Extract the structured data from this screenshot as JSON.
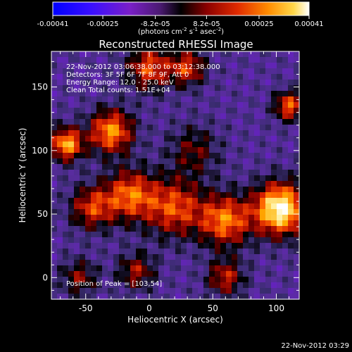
{
  "colorbar": {
    "ticks": [
      "-0.00041",
      "-0.00025",
      "-8.2e-05",
      "8.2e-05",
      "0.00025",
      "0.00041"
    ],
    "range": [
      -0.00041,
      0.00041
    ],
    "units_prefix": "(photons cm",
    "units_exp1": "-2",
    "units_mid": " s",
    "units_exp2": "-1",
    "units_suffix": " asec",
    "units_exp3": "-2",
    "units_close": ")"
  },
  "chart_data": {
    "type": "heatmap",
    "title": "Reconstructed RHESSI Image",
    "xlabel": "Heliocentric X (arcsec)",
    "ylabel": "Heliocentric Y (arcsec)",
    "xlim": [
      -77,
      118
    ],
    "ylim": [
      -17,
      178
    ],
    "xticks": [
      "-50",
      "0",
      "50",
      "100"
    ],
    "yticks": [
      "0",
      "50",
      "100",
      "150"
    ],
    "xtick_values": [
      -50,
      0,
      50,
      100
    ],
    "ytick_values": [
      0,
      50,
      100,
      150
    ],
    "info_lines": [
      "22-Nov-2012 03:06:38.000 to 03:12:38.000",
      "Detectors: 3F 5F 6F 7F 8F 9F, Att 0",
      "Energy Range: 12.0 - 25.0 keV",
      "Clean     Total counts: 1.51E+04"
    ],
    "peak_label": "Position of Peak = [103,54]",
    "peak": [
      103,
      54
    ],
    "colormap": [
      "#0000ff",
      "#3a0fff",
      "#6a1bd0",
      "#5a2ca0",
      "#3a2c70",
      "#000000",
      "#800000",
      "#d62000",
      "#ff6a00",
      "#ffb000",
      "#fff0a0",
      "#ffffff"
    ],
    "sources": [
      {
        "x": 103,
        "y": 54,
        "amp": 1.0,
        "sigma": 14
      },
      {
        "x": 60,
        "y": 45,
        "amp": 0.65,
        "sigma": 14
      },
      {
        "x": 20,
        "y": 55,
        "amp": 0.55,
        "sigma": 16
      },
      {
        "x": -15,
        "y": 65,
        "amp": 0.6,
        "sigma": 14
      },
      {
        "x": -45,
        "y": 55,
        "amp": 0.5,
        "sigma": 12
      },
      {
        "x": -30,
        "y": 115,
        "amp": 0.7,
        "sigma": 12
      },
      {
        "x": -65,
        "y": 105,
        "amp": 0.75,
        "sigma": 9
      },
      {
        "x": 0,
        "y": 165,
        "amp": 0.55,
        "sigma": 12
      },
      {
        "x": 30,
        "y": 165,
        "amp": 0.5,
        "sigma": 10
      },
      {
        "x": -10,
        "y": 5,
        "amp": 0.4,
        "sigma": 10
      },
      {
        "x": 60,
        "y": 0,
        "amp": 0.45,
        "sigma": 10
      },
      {
        "x": 110,
        "y": 135,
        "amp": 0.6,
        "sigma": 8
      },
      {
        "x": 35,
        "y": 100,
        "amp": 0.3,
        "sigma": 14
      },
      {
        "x": -55,
        "y": 0,
        "amp": 0.35,
        "sigma": 10
      }
    ]
  },
  "footer": {
    "timestamp": "22-Nov-2012 03:29"
  }
}
